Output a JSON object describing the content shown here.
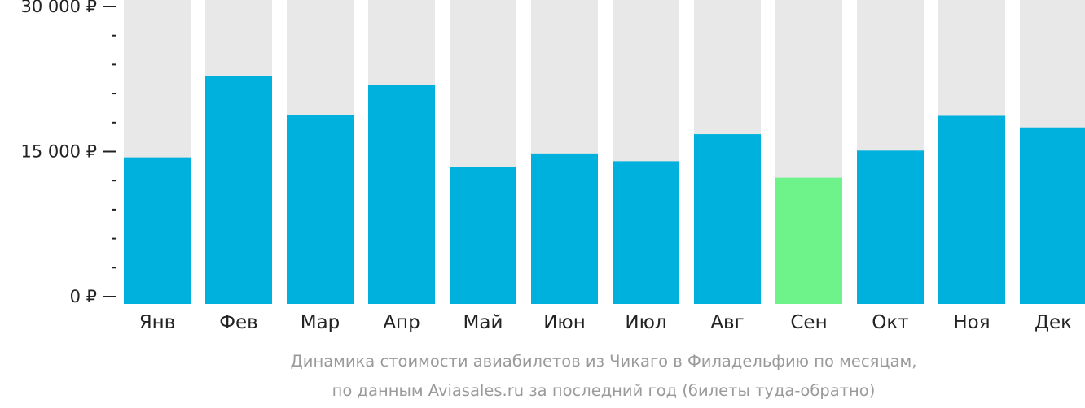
{
  "chart_data": {
    "type": "bar",
    "categories": [
      "Янв",
      "Фев",
      "Мар",
      "Апр",
      "Май",
      "Июн",
      "Июл",
      "Авг",
      "Сен",
      "Окт",
      "Ноя",
      "Дек"
    ],
    "values": [
      14400,
      22800,
      18800,
      21900,
      13400,
      14800,
      14000,
      16800,
      12300,
      15100,
      18700,
      17500
    ],
    "highlight_index": 8,
    "ylim": [
      0,
      30000
    ],
    "yticks": [
      {
        "value": 0,
        "label": "0 ₽"
      },
      {
        "value": 15000,
        "label": "15 000 ₽"
      },
      {
        "value": 30000,
        "label": "30 000 ₽"
      }
    ],
    "minor_tick_step": 3000,
    "caption": [
      "Динамика стоимости авиабилетов из Чикаго в Филадельфию по месяцам,",
      "по данным Aviasales.ru за последний год (билеты туда-обратно)"
    ],
    "colors": {
      "bar": "#00b1dd",
      "highlight": "#6ef28a",
      "background_bar": "#e8e8e8",
      "axis": "#222222"
    }
  }
}
